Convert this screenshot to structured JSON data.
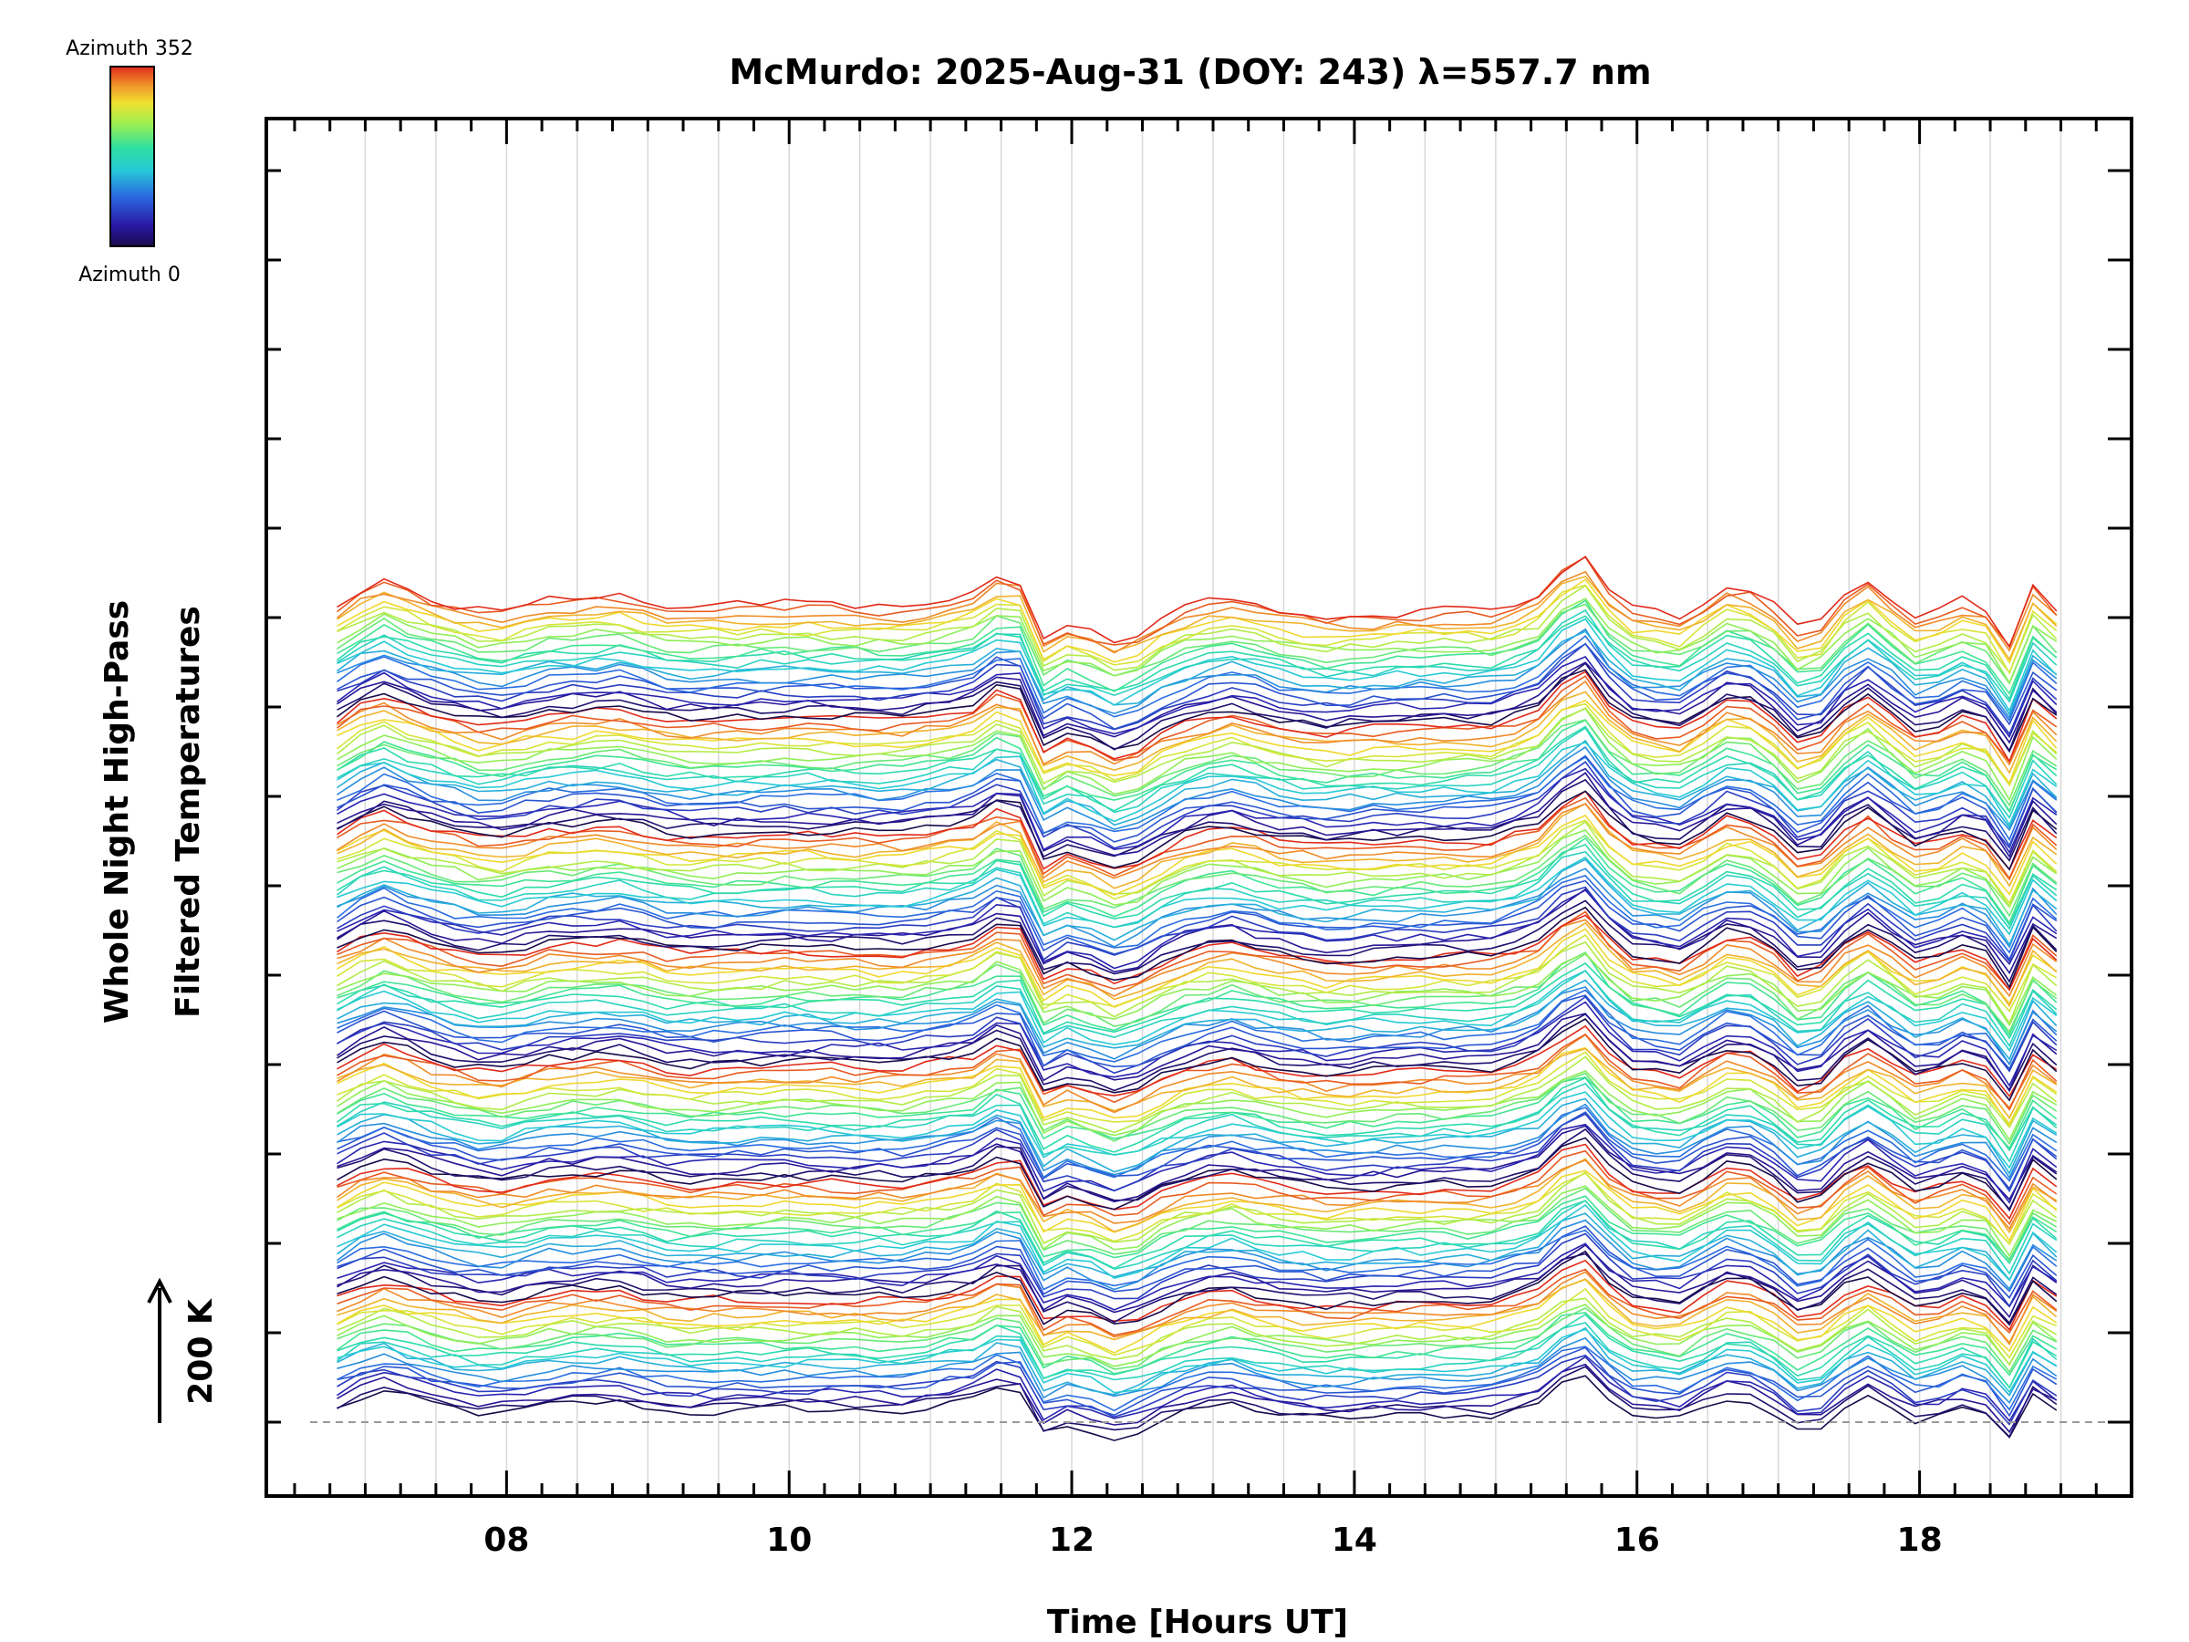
{
  "chart_data": {
    "type": "line",
    "title": "McMurdo: 2025-Aug-31 (DOY: 243) λ=557.7 nm",
    "xlabel": "Time [Hours UT]",
    "ylabel_line1": "Whole Night High-Pass",
    "ylabel_line2": "Filtered Temperatures",
    "xlim": [
      6.3,
      19.5
    ],
    "x_ticks": [
      "08",
      "10",
      "12",
      "14",
      "16",
      "18"
    ],
    "x_tick_values": [
      8,
      10,
      12,
      14,
      16,
      18
    ],
    "x_start": 6.8,
    "x_end": 19.0,
    "x_step": 0.1667,
    "grid": true,
    "scale_bar_label": "200 K",
    "colorbar": {
      "top_label": "Azimuth 352",
      "bottom_label": "Azimuth 0",
      "colormap": "rainbow"
    },
    "stacks": 7,
    "azimuths_per_stack": 22,
    "common_signal_key_points": [
      [
        6.8,
        0
      ],
      [
        7.1,
        28
      ],
      [
        7.5,
        5
      ],
      [
        7.9,
        -10
      ],
      [
        8.3,
        5
      ],
      [
        8.8,
        10
      ],
      [
        9.2,
        -5
      ],
      [
        10.0,
        0
      ],
      [
        10.8,
        -3
      ],
      [
        11.3,
        12
      ],
      [
        11.6,
        45
      ],
      [
        11.75,
        -40
      ],
      [
        12.0,
        -20
      ],
      [
        12.35,
        -45
      ],
      [
        12.7,
        -10
      ],
      [
        13.1,
        8
      ],
      [
        13.4,
        -5
      ],
      [
        13.8,
        -15
      ],
      [
        14.3,
        -10
      ],
      [
        15.0,
        -8
      ],
      [
        15.3,
        10
      ],
      [
        15.6,
        60
      ],
      [
        15.9,
        -5
      ],
      [
        16.3,
        -15
      ],
      [
        16.7,
        25
      ],
      [
        17.0,
        -5
      ],
      [
        17.2,
        -40
      ],
      [
        17.6,
        30
      ],
      [
        18.0,
        -20
      ],
      [
        18.4,
        10
      ],
      [
        18.65,
        -50
      ],
      [
        18.8,
        20
      ],
      [
        19.0,
        -10
      ]
    ]
  }
}
